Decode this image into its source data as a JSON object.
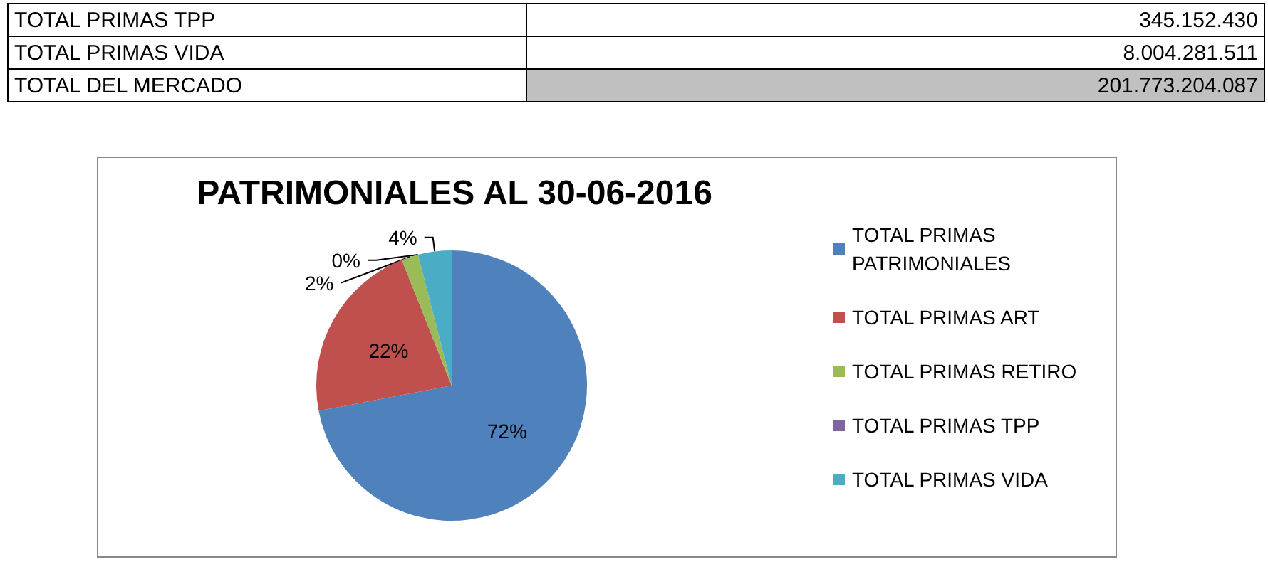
{
  "chart_data": {
    "type": "pie",
    "title": "PATRIMONIALES AL 30-06-2016",
    "categories": [
      "TOTAL PRIMAS PATRIMONIALES",
      "TOTAL PRIMAS ART",
      "TOTAL PRIMAS RETIRO",
      "TOTAL PRIMAS TPP",
      "TOTAL PRIMAS VIDA"
    ],
    "values": [
      72,
      22,
      2,
      0,
      4
    ],
    "colors": [
      "#4f81bd",
      "#c0504d",
      "#9bbb59",
      "#8064a2",
      "#4bacc6"
    ],
    "value_labels": [
      "72%",
      "22%",
      "2%",
      "0%",
      "4%"
    ],
    "legend": "right",
    "annotations": [
      "TOTAL PRIMAS TPP",
      "345.152.430",
      "TOTAL PRIMAS VIDA",
      "8.004.281.511",
      "TOTAL DEL MERCADO",
      "201.773.204.087"
    ]
  }
}
